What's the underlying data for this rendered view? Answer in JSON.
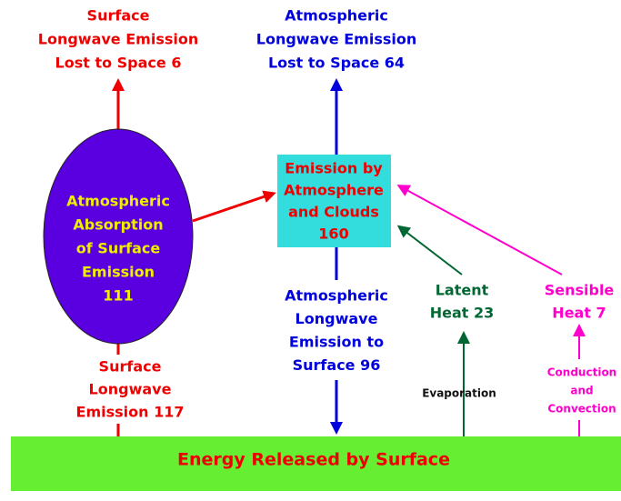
{
  "nodes": [
    {
      "id": "surface-lost",
      "lines": [
        "Surface",
        "Longwave Emission",
        "Lost to Space 6"
      ]
    },
    {
      "id": "atm-lost",
      "lines": [
        "Atmospheric",
        "Longwave Emission",
        "Lost to Space 64"
      ]
    },
    {
      "id": "absorption",
      "lines": [
        "Atmospheric",
        "Absorption",
        "of Surface",
        "Emission",
        "111"
      ]
    },
    {
      "id": "emission-box",
      "lines": [
        "Emission by",
        "Atmosphere",
        "and Clouds",
        "160"
      ]
    },
    {
      "id": "atm-to-surface",
      "lines": [
        "Atmospheric",
        "Longwave",
        "Emission to",
        "Surface  96"
      ]
    },
    {
      "id": "latent",
      "lines": [
        "Latent",
        "Heat 23"
      ]
    },
    {
      "id": "sensible",
      "lines": [
        "Sensible",
        "Heat 7"
      ]
    },
    {
      "id": "surface-emission",
      "lines": [
        "Surface",
        "Longwave",
        "Emission 117"
      ]
    },
    {
      "id": "evaporation",
      "lines": [
        "Evaporation"
      ]
    },
    {
      "id": "conduction",
      "lines": [
        "Conduction",
        "and",
        "Convection"
      ]
    },
    {
      "id": "ground",
      "lines": [
        "Energy Released by Surface"
      ]
    }
  ]
}
